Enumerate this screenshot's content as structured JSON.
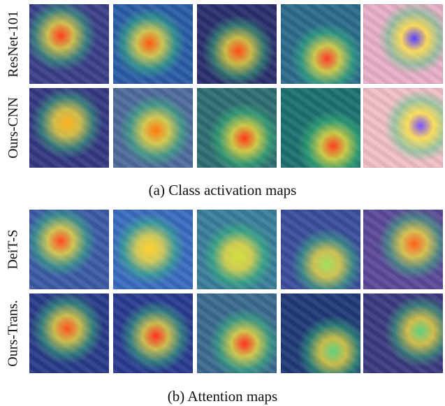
{
  "section_a": {
    "caption": "(a) Class activation maps",
    "rows": [
      {
        "label": "ResNet-101",
        "tiles": [
          {
            "name": "cam-resnet-peacock",
            "bg": "#3a3f8a",
            "hot": "#ff3b1f"
          },
          {
            "name": "cam-resnet-bird",
            "bg": "#2b5ca8",
            "hot": "#ff5a10"
          },
          {
            "name": "cam-resnet-fruit",
            "bg": "#2a2f6e",
            "hot": "#ff4a18"
          },
          {
            "name": "cam-resnet-object",
            "bg": "#2a6c8c",
            "hot": "#ff3a2a"
          },
          {
            "name": "cam-resnet-keyboard",
            "bg": "#e8b0c8",
            "hot": "#5a3cff"
          }
        ]
      },
      {
        "label": "Ours-CNN",
        "tiles": [
          {
            "name": "cam-ours-peacock",
            "bg": "#343884",
            "hot": "#ffb020"
          },
          {
            "name": "cam-ours-bird",
            "bg": "#4e6c9c",
            "hot": "#ff7a10"
          },
          {
            "name": "cam-ours-fruit",
            "bg": "#2f6e72",
            "hot": "#ff3a18"
          },
          {
            "name": "cam-ours-object",
            "bg": "#1e7070",
            "hot": "#ff4020"
          },
          {
            "name": "cam-ours-keyboard",
            "bg": "#f0c0c8",
            "hot": "#7a50ff"
          }
        ]
      }
    ]
  },
  "section_b": {
    "caption": "(b) Attention maps",
    "rows": [
      {
        "label": "DeiT-S",
        "tiles": [
          {
            "name": "attn-deit-tower",
            "bg": "#3c5aa8",
            "hot": "#ff4a20"
          },
          {
            "name": "attn-deit-airplane",
            "bg": "#3b6cc0",
            "hot": "#ffd030"
          },
          {
            "name": "attn-deit-person",
            "bg": "#3a7e9a",
            "hot": "#d0e040"
          },
          {
            "name": "attn-deit-butterfly",
            "bg": "#3a4e9c",
            "hot": "#a0e060"
          },
          {
            "name": "attn-deit-dog",
            "bg": "#5a4a98",
            "hot": "#ff6020"
          }
        ]
      },
      {
        "label": "Ours-Trans.",
        "tiles": [
          {
            "name": "attn-ours-tower",
            "bg": "#2a3c88",
            "hot": "#ff5020"
          },
          {
            "name": "attn-ours-airplane",
            "bg": "#2a3a90",
            "hot": "#ff3020"
          },
          {
            "name": "attn-ours-person",
            "bg": "#3a6a90",
            "hot": "#ff3020"
          },
          {
            "name": "attn-ours-butterfly",
            "bg": "#203a78",
            "hot": "#60d080"
          },
          {
            "name": "attn-ours-dog",
            "bg": "#3c3a80",
            "hot": "#60d080"
          }
        ]
      }
    ]
  }
}
